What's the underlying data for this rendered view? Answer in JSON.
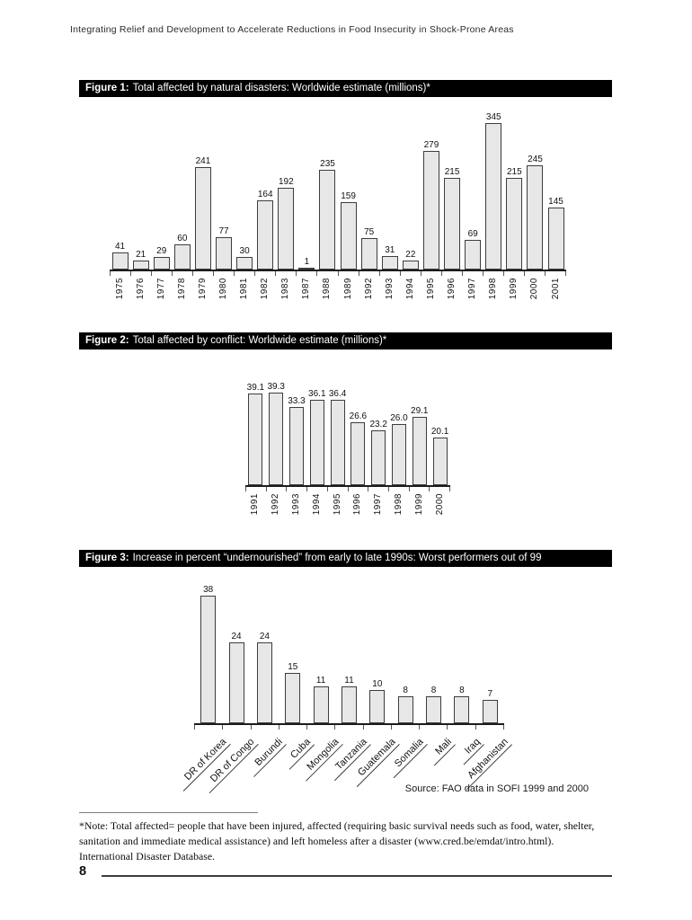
{
  "page": {
    "running_head": "Integrating Relief and Development to Accelerate Reductions in Food Insecurity in Shock-Prone Areas",
    "page_number": "8"
  },
  "figures": [
    {
      "caption_label": "Figure 1:",
      "caption_text": "Total affected by natural disasters: Worldwide estimate (millions)*"
    },
    {
      "caption_label": "Figure 2:",
      "caption_text": "Total affected by conflict: Worldwide estimate (millions)*"
    },
    {
      "caption_label": "Figure 3:",
      "caption_text": "Increase in percent “undernourished” from early to late 1990s: Worst performers out of 99"
    }
  ],
  "source_note": "Source: FAO data in SOFI 1999 and 2000",
  "footnote": "*Note: Total affected= people that have been injured, affected (requiring basic survival needs such as food, water, shelter, sanitation and immediate medical assistance) and left homeless after a disaster (www.cred.be/emdat/intro.html). International Disaster Database.",
  "colors": {
    "bar_fill": "#e7e7e7",
    "bar_border": "#3d3d3d",
    "caption_bg": "#000000",
    "caption_fg": "#ffffff"
  },
  "chart_data": [
    {
      "id": "fig1",
      "type": "bar",
      "title": "Total affected by natural disasters: Worldwide estimate (millions)*",
      "categories": [
        "1975",
        "1976",
        "1977",
        "1978",
        "1979",
        "1980",
        "1981",
        "1982",
        "1983",
        "1987",
        "1988",
        "1989",
        "1992",
        "1993",
        "1994",
        "1995",
        "1996",
        "1997",
        "1998",
        "1999",
        "2000",
        "2001"
      ],
      "values": [
        41,
        21,
        29,
        60,
        241,
        77,
        30,
        164,
        192,
        1,
        235,
        159,
        75,
        31,
        22,
        279,
        215,
        69,
        345,
        215,
        245,
        145
      ],
      "value_labels": [
        "41",
        "21",
        "29",
        "60",
        "241",
        "77",
        "30",
        "164",
        "192",
        "1",
        "235",
        "159",
        "75",
        "31",
        "22",
        "279",
        "215",
        "69",
        "345",
        "215",
        "245",
        "145"
      ],
      "xlabel": "",
      "ylabel": "",
      "ylim": [
        0,
        345
      ],
      "grid": false,
      "legend": "none",
      "xlabel_rotation": 90,
      "data_labels": true
    },
    {
      "id": "fig2",
      "type": "bar",
      "title": "Total affected by conflict: Worldwide estimate (millions)*",
      "categories": [
        "1991",
        "1992",
        "1993",
        "1994",
        "1995",
        "1996",
        "1997",
        "1998",
        "1999",
        "2000"
      ],
      "values": [
        39.1,
        39.3,
        33.3,
        36.1,
        36.4,
        26.6,
        23.2,
        26.0,
        29.1,
        20.1
      ],
      "value_labels": [
        "39.1",
        "39.3",
        "33.3",
        "36.1",
        "36.4",
        "26.6",
        "23.2",
        "26.0",
        "29.1",
        "20.1"
      ],
      "xlabel": "",
      "ylabel": "",
      "ylim": [
        0,
        39.3
      ],
      "grid": false,
      "legend": "none",
      "xlabel_rotation": 90,
      "data_labels": true
    },
    {
      "id": "fig3",
      "type": "bar",
      "title": "Increase in percent “undernourished” from early to late 1990s: Worst performers out of 99",
      "categories": [
        "DR of Korea",
        "DR of Congo",
        "Burundi",
        "Cuba",
        "Mongolia",
        "Tanzania",
        "Guatemala",
        "Somalia",
        "Mali",
        "Iraq",
        "Afghanistan"
      ],
      "values": [
        38,
        24,
        24,
        15,
        11,
        11,
        10,
        8,
        8,
        8,
        7
      ],
      "value_labels": [
        "38",
        "24",
        "24",
        "15",
        "11",
        "11",
        "10",
        "8",
        "8",
        "8",
        "7"
      ],
      "xlabel": "",
      "ylabel": "",
      "ylim": [
        0,
        38
      ],
      "grid": false,
      "legend": "none",
      "xlabel_rotation": 45,
      "data_labels": true
    }
  ]
}
